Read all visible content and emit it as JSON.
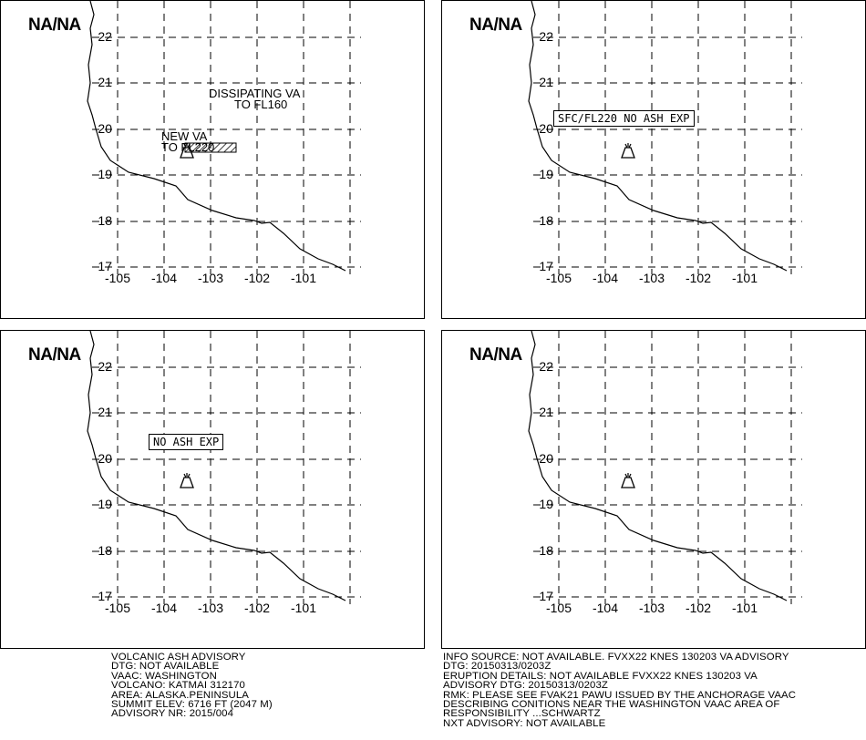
{
  "panels": [
    {
      "valid_label": "NA/NA",
      "annotations": [
        "DISSIPATING VA",
        "TO FL160",
        "NEW VA",
        "TO FL220"
      ],
      "box_label": ""
    },
    {
      "valid_label": "NA/NA",
      "annotations": [],
      "box_label": "SFC/FL220 NO ASH EXP"
    },
    {
      "valid_label": "NA/NA",
      "annotations": [],
      "box_label": "NO ASH EXP"
    },
    {
      "valid_label": "NA/NA",
      "annotations": [],
      "box_label": ""
    }
  ],
  "map": {
    "lat_labels": [
      "22",
      "21",
      "20",
      "19",
      "18",
      "17"
    ],
    "lon_labels": [
      "-105",
      "-104",
      "-103",
      "-102",
      "-101"
    ],
    "coastline_color": "#000000",
    "grid_style": "dashed",
    "volcano_icon": "volcano-icon"
  },
  "advisory_left": [
    "VOLCANIC ASH ADVISORY",
    "DTG: NOT AVAILABLE",
    "VAAC: WASHINGTON",
    "VOLCANO: KATMAI 312170",
    "AREA: ALASKA.PENINSULA",
    "SUMMIT ELEV: 6716 FT (2047 M)",
    "ADVISORY NR: 2015/004"
  ],
  "advisory_right": [
    "INFO SOURCE: NOT AVAILABLE. FVXX22 KNES 130203 VA ADVISORY",
    "DTG: 20150313/0203Z",
    "ERUPTION DETAILS: NOT AVAILABLE FVXX22 KNES 130203 VA",
    "ADVISORY DTG: 20150313/0203Z",
    "RMK: PLEASE SEE FVAK21 PAWU ISSUED BY THE ANCHORAGE VAAC",
    "DESCRIBING CONITIONS NEAR THE WASHINGTON VAAC AREA OF",
    "RESPONSIBILITY ...SCHWARTZ",
    "NXT ADVISORY: NOT AVAILABLE"
  ]
}
